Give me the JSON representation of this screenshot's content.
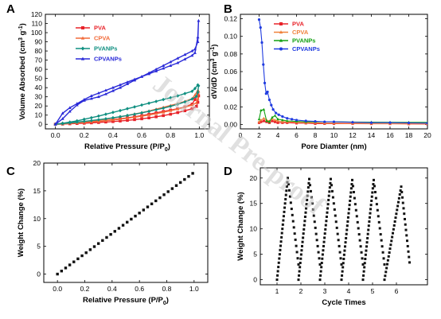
{
  "figure": {
    "panel_labels": [
      "A",
      "B",
      "C",
      "D"
    ],
    "watermark": "Journal Pre-proof"
  },
  "colors": {
    "PVA": "#e8232a",
    "CPVA": "#f26b3a",
    "PVANPs": "#0f8f80",
    "CPVANPs": "#2a2ad8",
    "B_PVA": "#e8232a",
    "B_CPVA": "#f0823c",
    "B_PVANPs": "#12a012",
    "B_CPVANPs": "#1f3be0",
    "black": "#111111",
    "watermark": "#c8c8c8"
  },
  "chart_data": [
    {
      "id": "A",
      "type": "line",
      "xlabel": "Relative Pressure (P/P",
      "xlabel_sub": "0",
      "xlabel_end": ")",
      "ylabel": "Volume Absorbed (cm",
      "ylabel_sup": "3",
      "ylabel_mid": " g",
      "ylabel_sup2": "-1",
      "ylabel_end": ")",
      "xlim": [
        -0.07,
        1.07
      ],
      "ylim": [
        -5,
        120
      ],
      "xticks": [
        "0.0",
        "0.2",
        "0.4",
        "0.6",
        "0.8",
        "1.0"
      ],
      "xtick_values": [
        0,
        0.2,
        0.4,
        0.6,
        0.8,
        1.0
      ],
      "yticks": [
        "0",
        "10",
        "20",
        "30",
        "40",
        "50",
        "60",
        "70",
        "80",
        "90",
        "100",
        "110",
        "120"
      ],
      "ytick_values": [
        0,
        10,
        20,
        30,
        40,
        50,
        60,
        70,
        80,
        90,
        100,
        110,
        120
      ],
      "legend_position": "top-left",
      "series": [
        {
          "name": "PVA",
          "marker": "square",
          "x": [
            0,
            0.05,
            0.1,
            0.15,
            0.2,
            0.25,
            0.3,
            0.35,
            0.4,
            0.45,
            0.5,
            0.55,
            0.6,
            0.65,
            0.7,
            0.75,
            0.8,
            0.85,
            0.9,
            0.95,
            0.98,
            0.99,
            0.995,
            0.99,
            0.97,
            0.95,
            0.9,
            0.85,
            0.8,
            0.75,
            0.7,
            0.65,
            0.6,
            0.55,
            0.5,
            0.45,
            0.4,
            0.35,
            0.3,
            0.25,
            0.2,
            0.15,
            0.1,
            0.05,
            0
          ],
          "y": [
            0,
            0.3,
            0.6,
            0.9,
            1.2,
            1.6,
            2.0,
            2.5,
            3.0,
            3.6,
            4.3,
            5.1,
            6.0,
            7.0,
            8.2,
            9.5,
            11,
            12.8,
            14.8,
            17,
            19.5,
            24,
            31,
            33,
            27,
            22,
            19,
            17,
            15.5,
            14,
            12.5,
            11,
            9.5,
            8.2,
            7,
            6,
            5,
            4,
            3.2,
            2.5,
            1.8,
            1.2,
            0.8,
            0.4,
            0
          ]
        },
        {
          "name": "CPVA",
          "marker": "triangle",
          "x": [
            0,
            0.05,
            0.1,
            0.15,
            0.2,
            0.25,
            0.3,
            0.35,
            0.4,
            0.45,
            0.5,
            0.55,
            0.6,
            0.65,
            0.7,
            0.75,
            0.8,
            0.85,
            0.9,
            0.95,
            0.98,
            0.99,
            0.995,
            0.99,
            0.97,
            0.95,
            0.9,
            0.85,
            0.8,
            0.75,
            0.7,
            0.65,
            0.6,
            0.55,
            0.5,
            0.45,
            0.4,
            0.35,
            0.3,
            0.25,
            0.2,
            0.15,
            0.1,
            0.05,
            0
          ],
          "y": [
            0,
            0.5,
            1.0,
            1.5,
            2.0,
            2.6,
            3.2,
            3.9,
            4.7,
            5.6,
            6.6,
            7.7,
            8.9,
            10.2,
            11.6,
            13.1,
            14.8,
            16.6,
            18.6,
            21,
            23.5,
            28,
            36,
            37,
            32,
            28,
            25,
            22.5,
            20.5,
            18.5,
            16.5,
            14.5,
            12.8,
            11.2,
            9.6,
            8.2,
            6.8,
            5.6,
            4.5,
            3.6,
            2.7,
            2.0,
            1.3,
            0.6,
            0
          ]
        },
        {
          "name": "PVANPs",
          "marker": "diamond",
          "x": [
            0,
            0.05,
            0.1,
            0.15,
            0.2,
            0.25,
            0.3,
            0.35,
            0.4,
            0.45,
            0.5,
            0.55,
            0.6,
            0.65,
            0.7,
            0.75,
            0.8,
            0.85,
            0.9,
            0.95,
            0.98,
            0.99,
            0.995,
            0.99,
            0.97,
            0.95,
            0.9,
            0.85,
            0.8,
            0.75,
            0.7,
            0.65,
            0.6,
            0.55,
            0.5,
            0.45,
            0.4,
            0.35,
            0.3,
            0.25,
            0.2,
            0.15,
            0.1,
            0.05,
            0
          ],
          "y": [
            0,
            0.8,
            1.6,
            2.4,
            3.2,
            4.0,
            5.0,
            6.0,
            7.1,
            8.3,
            9.6,
            11.0,
            12.5,
            14.1,
            15.8,
            17.6,
            19.6,
            21.8,
            24.4,
            27.5,
            30.5,
            35,
            42,
            43,
            39,
            36,
            33.5,
            31,
            29,
            27,
            25,
            23,
            21,
            19,
            17,
            15,
            13,
            11,
            9,
            7.2,
            5.5,
            3.8,
            2.4,
            1.2,
            0
          ]
        },
        {
          "name": "CPVANPs",
          "marker": "triangle",
          "x": [
            0,
            0.05,
            0.1,
            0.15,
            0.2,
            0.25,
            0.3,
            0.35,
            0.4,
            0.45,
            0.5,
            0.55,
            0.6,
            0.65,
            0.7,
            0.75,
            0.8,
            0.85,
            0.9,
            0.95,
            0.97,
            0.99,
            0.995,
            0.99,
            0.97,
            0.95,
            0.9,
            0.85,
            0.8,
            0.75,
            0.7,
            0.65,
            0.6,
            0.55,
            0.5,
            0.45,
            0.4,
            0.35,
            0.3,
            0.25,
            0.2,
            0.15,
            0.1,
            0.05,
            0
          ],
          "y": [
            0,
            12,
            18,
            22.5,
            27,
            31,
            34,
            37,
            40,
            43,
            46,
            49,
            52,
            55,
            58,
            61,
            64,
            67,
            71,
            75,
            78,
            95,
            113,
            90,
            82,
            80,
            76,
            72,
            68,
            64,
            60,
            56,
            52,
            48,
            44,
            40,
            36.5,
            33,
            30,
            28,
            26,
            21,
            14,
            6,
            0
          ]
        }
      ]
    },
    {
      "id": "B",
      "type": "line",
      "xlabel": "Pore Diamter (nm)",
      "ylabel": "dV/dD (cm",
      "ylabel_sup": "3",
      "ylabel_mid": " g",
      "ylabel_sup2": "-1",
      "ylabel_end": ")",
      "xlim": [
        0,
        20
      ],
      "ylim": [
        -0.005,
        0.125
      ],
      "xticks": [
        "0",
        "2",
        "4",
        "6",
        "8",
        "10",
        "12",
        "14",
        "16",
        "18",
        "20"
      ],
      "xtick_values": [
        0,
        2,
        4,
        6,
        8,
        10,
        12,
        14,
        16,
        18,
        20
      ],
      "yticks": [
        "0.00",
        "0.02",
        "0.04",
        "0.06",
        "0.08",
        "0.10",
        "0.12"
      ],
      "ytick_values": [
        0,
        0.02,
        0.04,
        0.06,
        0.08,
        0.1,
        0.12
      ],
      "legend_position": "top-right",
      "series": [
        {
          "name": "PVA",
          "marker": "square",
          "x": [
            2,
            2.2,
            2.5,
            2.8,
            3.1,
            3.4,
            3.7,
            4.0,
            4.5,
            5,
            6,
            7,
            8,
            9,
            10,
            12,
            14,
            16,
            18,
            20
          ],
          "y": [
            0.002,
            0.003,
            0.004,
            0.003,
            0.002,
            0.004,
            0.003,
            0.002,
            0.002,
            0.002,
            0.0015,
            0.0015,
            0.001,
            0.001,
            0.001,
            0.001,
            0.0008,
            0.0008,
            0.0006,
            0.0005
          ]
        },
        {
          "name": "CPVA",
          "marker": "triangle",
          "x": [
            2,
            2.2,
            2.5,
            2.8,
            3.1,
            3.4,
            3.7,
            4.0,
            4.5,
            5,
            6,
            7,
            8,
            9,
            10,
            12,
            14,
            16,
            18,
            20
          ],
          "y": [
            0.003,
            0.005,
            0.007,
            0.005,
            0.004,
            0.006,
            0.005,
            0.004,
            0.003,
            0.003,
            0.0025,
            0.002,
            0.002,
            0.0015,
            0.0015,
            0.0012,
            0.001,
            0.001,
            0.0008,
            0.0007
          ]
        },
        {
          "name": "PVANPs",
          "marker": "triangle",
          "x": [
            2,
            2.2,
            2.5,
            2.8,
            3.1,
            3.4,
            3.7,
            4.0,
            4.5,
            5,
            6,
            7,
            8,
            9,
            10,
            12,
            14,
            16,
            18,
            20
          ],
          "y": [
            0.006,
            0.016,
            0.017,
            0.004,
            0.003,
            0.008,
            0.01,
            0.006,
            0.005,
            0.004,
            0.0035,
            0.003,
            0.003,
            0.003,
            0.003,
            0.0028,
            0.0026,
            0.0025,
            0.0024,
            0.0024
          ]
        },
        {
          "name": "CPVANPs",
          "marker": "circle",
          "x": [
            2,
            2.15,
            2.3,
            2.45,
            2.6,
            2.75,
            2.9,
            3.1,
            3.3,
            3.5,
            3.8,
            4.1,
            4.5,
            5,
            5.5,
            6,
            7,
            8,
            9,
            10,
            12,
            14,
            16,
            18,
            20
          ],
          "y": [
            0.119,
            0.11,
            0.093,
            0.068,
            0.047,
            0.035,
            0.037,
            0.028,
            0.022,
            0.017,
            0.013,
            0.011,
            0.009,
            0.007,
            0.006,
            0.005,
            0.004,
            0.0035,
            0.003,
            0.003,
            0.0025,
            0.002,
            0.002,
            0.0018,
            0.0015
          ]
        }
      ]
    },
    {
      "id": "C",
      "type": "scatter",
      "xlabel": "Relative Pressure (P/P",
      "xlabel_sub": "0",
      "xlabel_end": ")",
      "ylabel": "Weight Change (%)",
      "xlim": [
        -0.1,
        1.1
      ],
      "ylim": [
        -1.5,
        20
      ],
      "xticks": [
        "0.0",
        "0.2",
        "0.4",
        "0.6",
        "0.8",
        "1.0"
      ],
      "xtick_values": [
        0,
        0.2,
        0.4,
        0.6,
        0.8,
        1.0
      ],
      "yticks": [
        "0",
        "5",
        "10",
        "15",
        "20"
      ],
      "ytick_values": [
        0,
        5,
        10,
        15,
        20
      ],
      "series": [
        {
          "marker": "square",
          "x": [
            0,
            0.03,
            0.06,
            0.09,
            0.12,
            0.15,
            0.18,
            0.21,
            0.24,
            0.27,
            0.3,
            0.33,
            0.36,
            0.39,
            0.42,
            0.45,
            0.48,
            0.51,
            0.54,
            0.57,
            0.6,
            0.63,
            0.66,
            0.69,
            0.72,
            0.75,
            0.78,
            0.81,
            0.84,
            0.87,
            0.9,
            0.93,
            0.96,
            0.99
          ],
          "y": [
            0,
            0.55,
            1.1,
            1.65,
            2.2,
            2.75,
            3.3,
            3.85,
            4.4,
            4.95,
            5.5,
            6.05,
            6.6,
            7.15,
            7.7,
            8.25,
            8.8,
            9.35,
            9.9,
            10.45,
            11.0,
            11.55,
            12.1,
            12.65,
            13.2,
            13.75,
            14.3,
            14.85,
            15.4,
            15.95,
            16.5,
            17.05,
            17.6,
            18.15
          ]
        }
      ]
    },
    {
      "id": "D",
      "type": "scatter",
      "xlabel": "Cycle Times",
      "ylabel": "Weight Change (%)",
      "xlim": [
        0.3,
        7.3
      ],
      "ylim": [
        -1,
        22
      ],
      "xticks": [
        "1",
        "2",
        "3",
        "4",
        "5",
        "6"
      ],
      "xtick_values": [
        1,
        2,
        3,
        4,
        5,
        6
      ],
      "yticks": [
        "0",
        "5",
        "10",
        "15",
        "20"
      ],
      "ytick_values": [
        0,
        5,
        10,
        15,
        20
      ],
      "cycles": [
        {
          "start": 1.0,
          "peak_x": 1.45,
          "peak_y": 20.0,
          "end_x": 1.9,
          "end_y": 3.0
        },
        {
          "start": 1.9,
          "peak_x": 2.35,
          "peak_y": 19.8,
          "end_x": 2.8,
          "end_y": 3.0
        },
        {
          "start": 2.8,
          "peak_x": 3.25,
          "peak_y": 19.8,
          "end_x": 3.7,
          "end_y": 3.0
        },
        {
          "start": 3.7,
          "peak_x": 4.15,
          "peak_y": 19.6,
          "end_x": 4.6,
          "end_y": 3.0
        },
        {
          "start": 4.6,
          "peak_x": 5.05,
          "peak_y": 19.6,
          "end_x": 5.5,
          "end_y": 3.0
        },
        {
          "start": 5.5,
          "peak_x": 6.2,
          "peak_y": 18.3,
          "end_x": 6.55,
          "end_y": 3.4
        }
      ]
    }
  ]
}
